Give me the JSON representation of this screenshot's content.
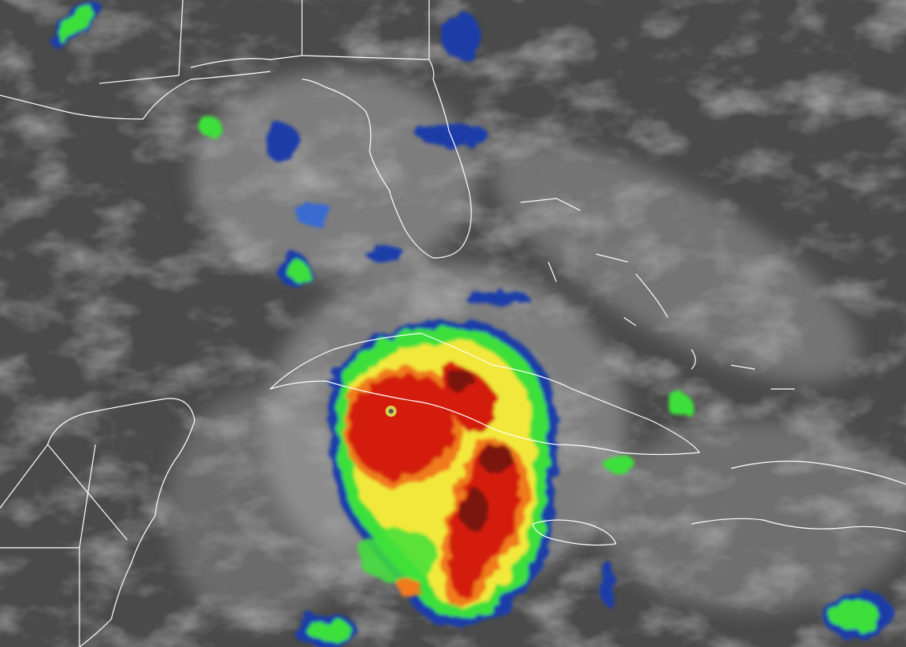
{
  "image": {
    "kind": "infrared satellite imagery",
    "subject": "hurricane",
    "colors": {
      "background": "#4a4a4a",
      "cloud": "#bdbdbd",
      "coastline": "#ffffff",
      "cold_top_blue": "#1e3ca8",
      "cold_top_green": "#3ee03a",
      "cold_top_yellow": "#f2e83a",
      "cold_top_orange": "#f07a1e",
      "cold_top_red": "#d41a10",
      "cold_top_dark_red": "#7a1410"
    }
  }
}
